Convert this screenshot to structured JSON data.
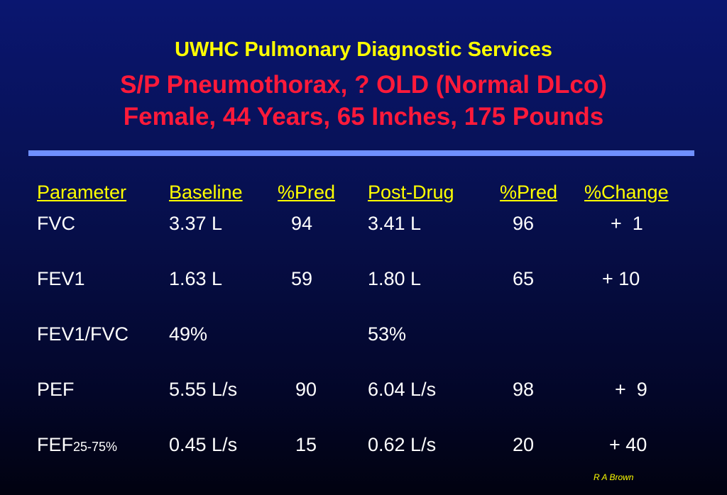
{
  "title": {
    "line1": "UWHC Pulmonary Diagnostic Services",
    "line2": "S/P Pneumothorax, ? OLD (Normal DLco)",
    "line3": "Female, 44 Years, 65 Inches, 175 Pounds"
  },
  "table": {
    "headers": [
      "Parameter",
      "Baseline",
      "%Pred",
      "Post-Drug",
      "%Pred",
      "%Change"
    ],
    "rows": [
      {
        "param": "FVC",
        "param_sub": "",
        "baseline": "3.37 L",
        "pred1": "94",
        "post": "3.41 L",
        "pred2": "96",
        "change": "+  1"
      },
      {
        "param": "FEV1",
        "param_sub": "",
        "baseline": "1.63 L",
        "pred1": "59",
        "post": "1.80 L",
        "pred2": "65",
        "change": "+ 10"
      },
      {
        "param": "FEV1/FVC",
        "param_sub": "",
        "baseline": "49%",
        "pred1": "",
        "post": "53%",
        "pred2": "",
        "change": ""
      },
      {
        "param": "PEF",
        "param_sub": "",
        "baseline": "5.55 L/s",
        "pred1": "90",
        "post": "6.04 L/s",
        "pred2": "98",
        "change": "+  9"
      },
      {
        "param": "FEF",
        "param_sub": "25-75%",
        "baseline": "0.45 L/s",
        "pred1": "15",
        "post": "0.62 L/s",
        "pred2": "20",
        "change": "+ 40"
      }
    ]
  },
  "credit": "R A Brown",
  "colors": {
    "title_yellow": "#ffff00",
    "title_red": "#ff1a3a",
    "divider": "#6f8fff",
    "text": "#ffffff"
  }
}
